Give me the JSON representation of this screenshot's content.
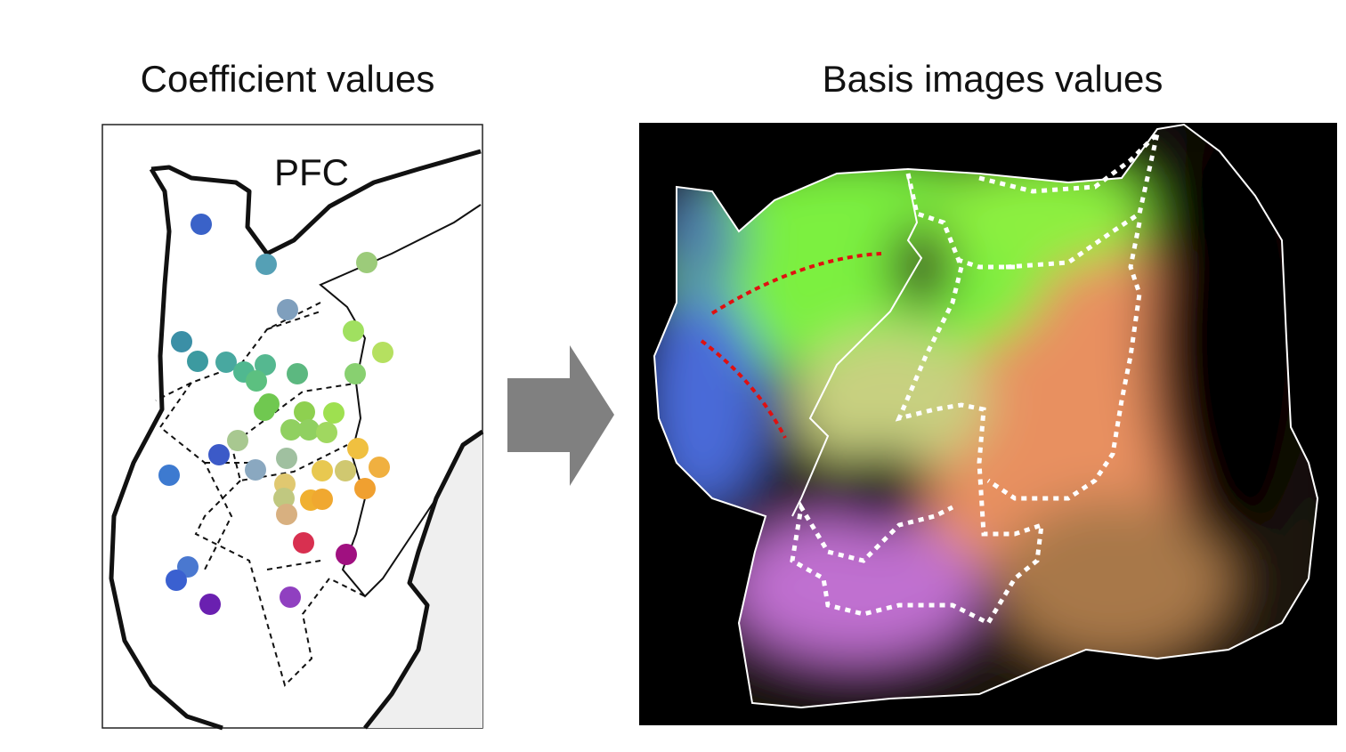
{
  "panels": [
    {
      "title": "Coefficient values",
      "label": "PFC"
    },
    {
      "title": "Basis images values"
    }
  ]
}
